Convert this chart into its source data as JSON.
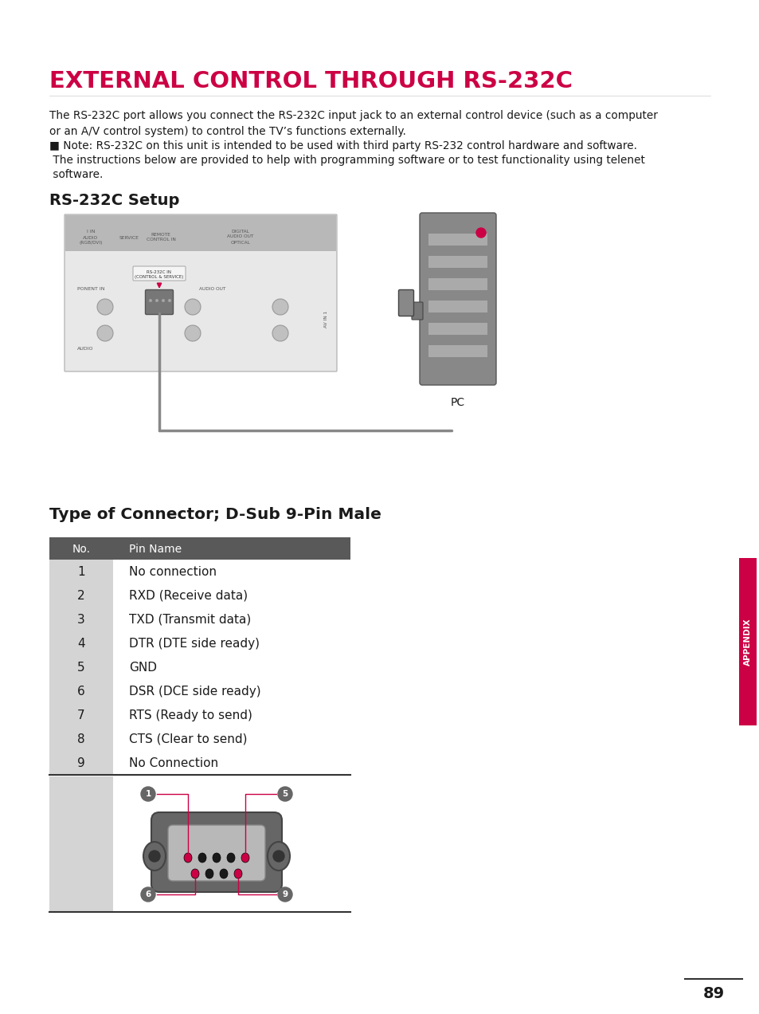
{
  "title": "EXTERNAL CONTROL THROUGH RS-232C",
  "title_color": "#cc0044",
  "body_text1": "The RS-232C port allows you connect the RS-232C input jack to an external control device (such as a computer\nor an A/V control system) to control the TV’s functions externally.",
  "body_text2_line1": "■ Note: RS-232C on this unit is intended to be used with third party RS-232 control hardware and software.",
  "body_text2_line2": " The instructions below are provided to help with programming software or to test functionality using telenet",
  "body_text2_line3": " software.",
  "section1_title": "RS-232C Setup",
  "section2_title": "Type of Connector; D-Sub 9-Pin Male",
  "table_header_bg": "#595959",
  "table_header_text": "#ffffff",
  "table_left_col_bg": "#d4d4d4",
  "table_col1_header": "No.",
  "table_col2_header": "Pin Name",
  "table_rows": [
    [
      "1",
      "No connection"
    ],
    [
      "2",
      "RXD (Receive data)"
    ],
    [
      "3",
      "TXD (Transmit data)"
    ],
    [
      "4",
      "DTR (DTE side ready)"
    ],
    [
      "5",
      "GND"
    ],
    [
      "6",
      "DSR (DCE side ready)"
    ],
    [
      "7",
      "RTS (Ready to send)"
    ],
    [
      "8",
      "CTS (Clear to send)"
    ],
    [
      "9",
      "No Connection"
    ]
  ],
  "appendix_color": "#cc0044",
  "page_number": "89",
  "bg_color": "#ffffff",
  "text_color": "#1a1a1a",
  "pin_line_color": "#cc0044",
  "connector_body_color": "#666666",
  "connector_inner_color": "#c0c0c0",
  "connector_pin_dark": "#1a1a1a",
  "connector_pin_red": "#cc0044",
  "label_circle_color": "#666666",
  "label_circle_text": "#ffffff"
}
